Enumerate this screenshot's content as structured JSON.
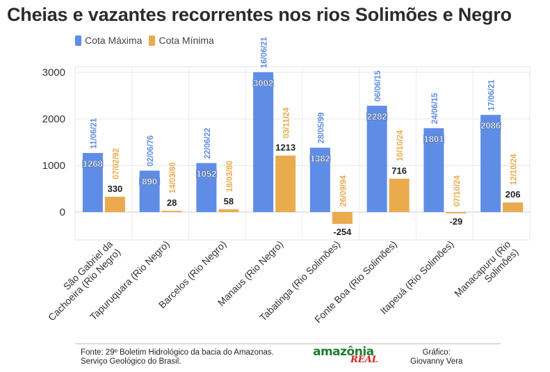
{
  "title": "Cheias e vazantes recorrentes nos rios Solimões e Negro",
  "legend": [
    {
      "label": "Cota Máxima",
      "color": "#5f8de6"
    },
    {
      "label": "Cota Mínima",
      "color": "#e9ab4e"
    }
  ],
  "chart_data": {
    "type": "bar",
    "title": "Cheias e vazantes recorrentes nos rios Solimões e Negro",
    "categories": [
      "São Gabriel da Cachoeira (Rio Negro)",
      "Tapuruquara (Rio Negro)",
      "Barcelos (Rio Negro)",
      "Manaus (Rio Negro)",
      "Tabatinga (Rio Solimões)",
      "Fonte Boa (Rio Solimões)",
      "Itapeuá (Rio Solimões)",
      "Manacapuru (Rio Solimões)"
    ],
    "category_lines": [
      [
        "São Gabriel da",
        "Cachoeira (Rio Negro)"
      ],
      [
        "Tapuruquara (Rio Negro)"
      ],
      [
        "Barcelos (Rio Negro)"
      ],
      [
        "Manaus (Rio Negro)"
      ],
      [
        "Tabatinga (Rio Solimões)"
      ],
      [
        "Fonte Boa (Rio Solimões)"
      ],
      [
        "Itapeuá (Rio Solimões)"
      ],
      [
        "Manacapuru (Rio",
        "Solimões)"
      ]
    ],
    "series": [
      {
        "name": "Cota Máxima",
        "color": "#5f8de6",
        "values": [
          1268,
          890,
          1052,
          3002,
          1382,
          2282,
          1801,
          2086
        ],
        "value_labels": [
          "1268",
          "890",
          "1052",
          "3002",
          "1382",
          "2282",
          "1801",
          "2086"
        ],
        "dates": [
          "11/06/21",
          "02/06/76",
          "22/06/22",
          "16/06/21",
          "28/05/99",
          "06/06/15",
          "24/06/15",
          "17/06/21"
        ]
      },
      {
        "name": "Cota Mínima",
        "color": "#e9ab4e",
        "values": [
          330,
          28,
          58,
          1213,
          -254,
          716,
          -29,
          206
        ],
        "value_labels": [
          "330",
          "28",
          "58",
          "1213",
          "-254",
          "716",
          "-29",
          "206"
        ],
        "dates": [
          "07/02/92",
          "14/03/80",
          "18/03/80",
          "03/11/24",
          "26/09/94",
          "10/10/24",
          "07/10/24",
          "12/10/24"
        ]
      }
    ],
    "yticks": [
      "0",
      "1000",
      "2000",
      "3000"
    ],
    "ylim": [
      -500,
      3000
    ],
    "grid": true,
    "legend_position": "top-left"
  },
  "footer": {
    "source_line1": "Fonte: 29º Boletim Hidrológico da bacia do Amazonas.",
    "source_line2": "Serviço Geológico do Brasil.",
    "credit_line1": "Gráfico:",
    "credit_line2": "Giovanny Vera",
    "logo_main": "amazônia",
    "logo_sub": "REAL"
  }
}
